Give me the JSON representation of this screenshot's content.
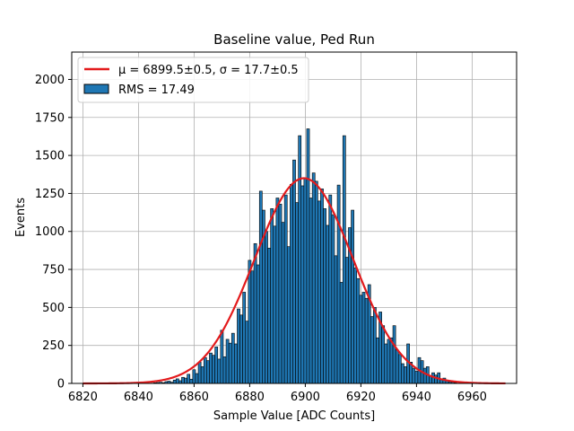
{
  "chart_data": {
    "type": "bar",
    "title": "Baseline value, Ped Run",
    "xlabel": "Sample Value [ADC Counts]",
    "ylabel": "Events",
    "xlim": [
      6816,
      6976
    ],
    "ylim": [
      0,
      2180
    ],
    "xticks": [
      6820,
      6840,
      6860,
      6880,
      6900,
      6920,
      6940,
      6960
    ],
    "yticks": [
      0,
      250,
      500,
      750,
      1000,
      1250,
      1500,
      1750,
      2000
    ],
    "grid": true,
    "legend_position": "top-left",
    "bin_width": 1,
    "bar_color": "#1f77b4",
    "bar_edge_color": "#000000",
    "fit_color": "#e31a1c",
    "bins": [
      [
        6845,
        2
      ],
      [
        6846,
        4
      ],
      [
        6847,
        6
      ],
      [
        6848,
        8
      ],
      [
        6849,
        5
      ],
      [
        6850,
        12
      ],
      [
        6851,
        15
      ],
      [
        6852,
        8
      ],
      [
        6853,
        22
      ],
      [
        6854,
        30
      ],
      [
        6855,
        18
      ],
      [
        6856,
        40
      ],
      [
        6857,
        35
      ],
      [
        6858,
        60
      ],
      [
        6859,
        28
      ],
      [
        6860,
        90
      ],
      [
        6861,
        65
      ],
      [
        6862,
        140
      ],
      [
        6863,
        110
      ],
      [
        6864,
        170
      ],
      [
        6865,
        150
      ],
      [
        6866,
        200
      ],
      [
        6867,
        185
      ],
      [
        6868,
        240
      ],
      [
        6869,
        160
      ],
      [
        6870,
        350
      ],
      [
        6871,
        175
      ],
      [
        6872,
        290
      ],
      [
        6873,
        265
      ],
      [
        6874,
        330
      ],
      [
        6875,
        260
      ],
      [
        6876,
        490
      ],
      [
        6877,
        450
      ],
      [
        6878,
        600
      ],
      [
        6879,
        410
      ],
      [
        6880,
        810
      ],
      [
        6881,
        740
      ],
      [
        6882,
        920
      ],
      [
        6883,
        780
      ],
      [
        6884,
        1265
      ],
      [
        6885,
        1140
      ],
      [
        6886,
        1000
      ],
      [
        6887,
        890
      ],
      [
        6888,
        1150
      ],
      [
        6889,
        1035
      ],
      [
        6890,
        1220
      ],
      [
        6891,
        1180
      ],
      [
        6892,
        1060
      ],
      [
        6893,
        1240
      ],
      [
        6894,
        900
      ],
      [
        6895,
        1310
      ],
      [
        6896,
        1470
      ],
      [
        6897,
        1190
      ],
      [
        6898,
        1630
      ],
      [
        6899,
        1300
      ],
      [
        6900,
        1350
      ],
      [
        6901,
        1675
      ],
      [
        6902,
        1220
      ],
      [
        6903,
        1385
      ],
      [
        6904,
        1330
      ],
      [
        6905,
        1200
      ],
      [
        6906,
        1280
      ],
      [
        6907,
        1150
      ],
      [
        6908,
        1040
      ],
      [
        6909,
        1240
      ],
      [
        6910,
        1110
      ],
      [
        6911,
        840
      ],
      [
        6912,
        1305
      ],
      [
        6913,
        665
      ],
      [
        6914,
        1630
      ],
      [
        6915,
        830
      ],
      [
        6916,
        1025
      ],
      [
        6917,
        1140
      ],
      [
        6918,
        760
      ],
      [
        6919,
        690
      ],
      [
        6920,
        580
      ],
      [
        6921,
        600
      ],
      [
        6922,
        560
      ],
      [
        6923,
        650
      ],
      [
        6924,
        440
      ],
      [
        6925,
        500
      ],
      [
        6926,
        300
      ],
      [
        6927,
        470
      ],
      [
        6928,
        380
      ],
      [
        6929,
        260
      ],
      [
        6930,
        290
      ],
      [
        6931,
        300
      ],
      [
        6932,
        380
      ],
      [
        6933,
        220
      ],
      [
        6934,
        190
      ],
      [
        6935,
        130
      ],
      [
        6936,
        110
      ],
      [
        6937,
        260
      ],
      [
        6938,
        140
      ],
      [
        6939,
        100
      ],
      [
        6940,
        80
      ],
      [
        6941,
        170
      ],
      [
        6942,
        150
      ],
      [
        6943,
        100
      ],
      [
        6944,
        110
      ],
      [
        6945,
        50
      ],
      [
        6946,
        70
      ],
      [
        6947,
        55
      ],
      [
        6948,
        70
      ],
      [
        6949,
        30
      ],
      [
        6950,
        35
      ],
      [
        6951,
        18
      ],
      [
        6952,
        10
      ],
      [
        6953,
        8
      ],
      [
        6954,
        5
      ]
    ],
    "fit": {
      "mu": 6899.5,
      "sigma": 17.7,
      "amplitude": 1350,
      "x_range": [
        6820,
        6972
      ]
    },
    "legend": [
      {
        "kind": "line",
        "label": "μ = 6899.5±0.5, σ = 17.7±0.5"
      },
      {
        "kind": "patch",
        "label": "RMS = 17.49"
      }
    ]
  }
}
